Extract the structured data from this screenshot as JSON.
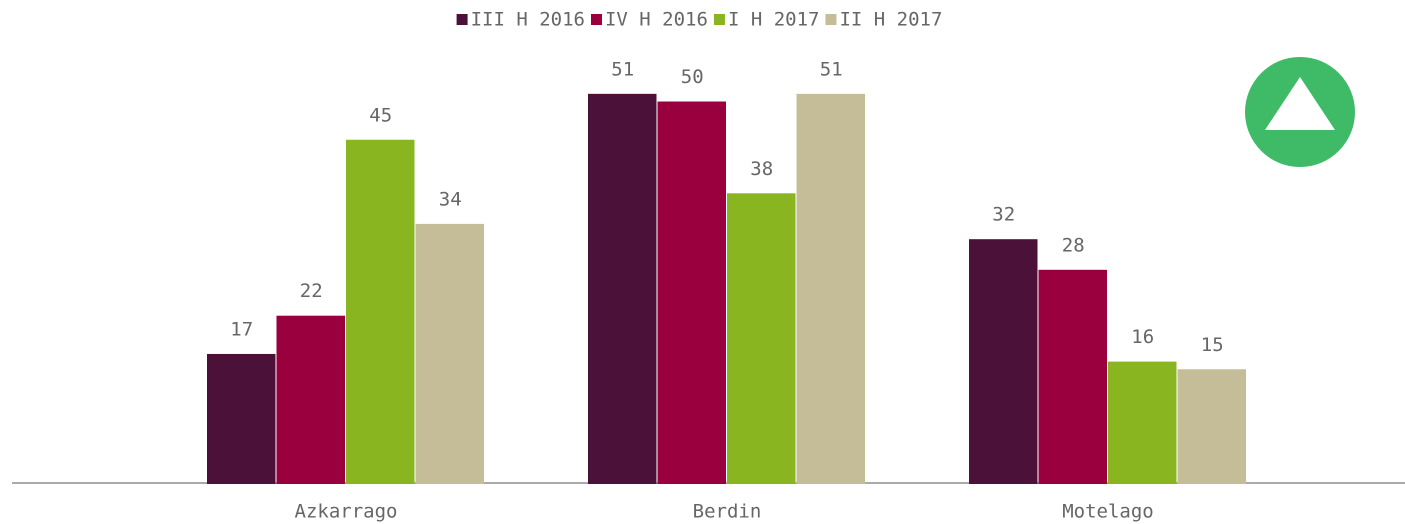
{
  "chart_data": {
    "type": "bar",
    "categories": [
      "Azkarrago",
      "Berdin",
      "Motelago"
    ],
    "series": [
      {
        "name": "III H 2016",
        "color": "#4b1139",
        "values": [
          17,
          51,
          32
        ]
      },
      {
        "name": "IV H 2016",
        "color": "#99003d",
        "values": [
          22,
          50,
          28
        ]
      },
      {
        "name": "I H 2017",
        "color": "#88b520",
        "values": [
          45,
          38,
          16
        ]
      },
      {
        "name": "II H 2017",
        "color": "#c5bd97",
        "values": [
          34,
          51,
          15
        ]
      }
    ],
    "ylim": [
      0,
      60
    ],
    "legend": "top"
  }
}
